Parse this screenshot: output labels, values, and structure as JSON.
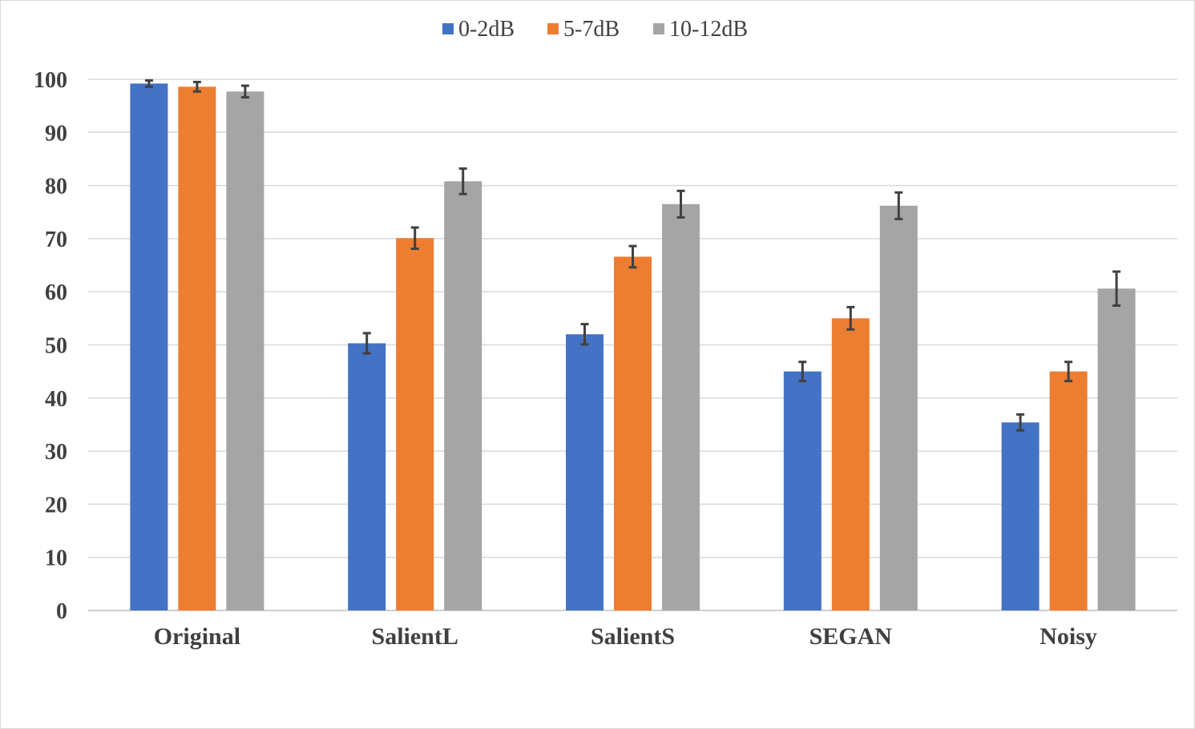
{
  "chart_data": {
    "type": "bar",
    "title": "",
    "xlabel": "",
    "ylabel": "",
    "ylim": [
      0,
      100
    ],
    "yticks": [
      0,
      10,
      20,
      30,
      40,
      50,
      60,
      70,
      80,
      90,
      100
    ],
    "grid": true,
    "legend_position": "top-center",
    "categories": [
      "Original",
      "SalientL",
      "SalientS",
      "SEGAN",
      "Noisy"
    ],
    "series": [
      {
        "name": "0-2dB",
        "color": "#4472C4",
        "values": [
          99.2,
          50.3,
          52.0,
          45.0,
          35.4
        ],
        "errors": [
          0.6,
          1.9,
          1.9,
          1.8,
          1.5
        ]
      },
      {
        "name": "5-7dB",
        "color": "#ED7D31",
        "values": [
          98.6,
          70.1,
          66.6,
          55.0,
          45.0
        ],
        "errors": [
          0.9,
          2.0,
          2.0,
          2.1,
          1.8
        ]
      },
      {
        "name": "10-12dB",
        "color": "#A5A5A5",
        "values": [
          97.7,
          80.8,
          76.5,
          76.2,
          60.6
        ],
        "errors": [
          1.1,
          2.4,
          2.5,
          2.5,
          3.2
        ]
      }
    ]
  }
}
